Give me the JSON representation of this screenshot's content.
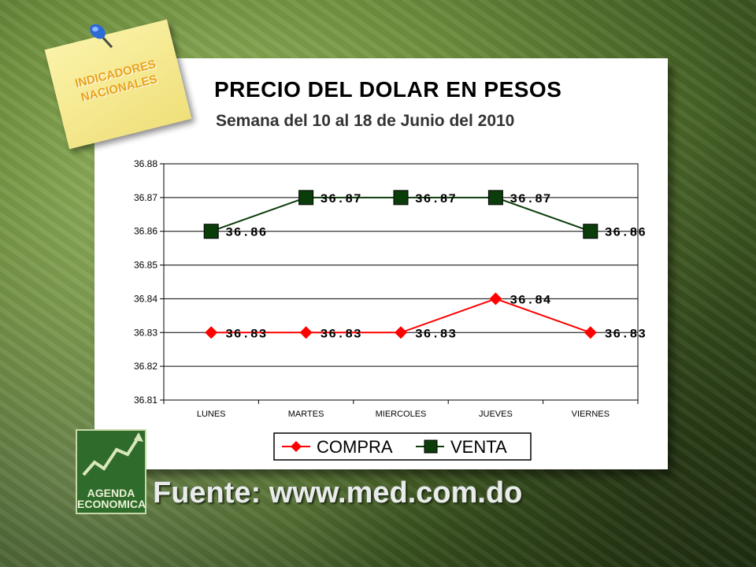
{
  "sticky_note": {
    "line1": "INDICADORES",
    "line2": "NACIONALES"
  },
  "title": "PRECIO DEL DOLAR EN PESOS",
  "subtitle": "Semana del 10 al 18 de Junio del 2010",
  "logo": {
    "line1": "AGENDA",
    "line2": "ECONOMICA"
  },
  "source": "Fuente: www.med.com.do",
  "colors": {
    "compra": "#ff0000",
    "venta": "#0b3d0b"
  },
  "chart_data": {
    "type": "line",
    "categories": [
      "LUNES",
      "MARTES",
      "MIERCOLES",
      "JUEVES",
      "VIERNES"
    ],
    "series": [
      {
        "name": "COMPRA",
        "values": [
          36.83,
          36.83,
          36.83,
          36.84,
          36.83
        ],
        "labels": [
          "36.83",
          "36.83",
          "36.83",
          "36.84",
          "36.83"
        ],
        "color": "#ff0000",
        "marker": "diamond"
      },
      {
        "name": "VENTA",
        "values": [
          36.86,
          36.87,
          36.87,
          36.87,
          36.86
        ],
        "labels": [
          "36.86",
          "36.87",
          "36.87",
          "36.87",
          "36.86"
        ],
        "color": "#0b3d0b",
        "marker": "square"
      }
    ],
    "ylim": [
      36.81,
      36.88
    ],
    "yticks": [
      "36.88",
      "36.87",
      "36.86",
      "36.85",
      "36.84",
      "36.83",
      "36.82",
      "36.81"
    ],
    "grid": true,
    "legend": "bottom-center"
  }
}
